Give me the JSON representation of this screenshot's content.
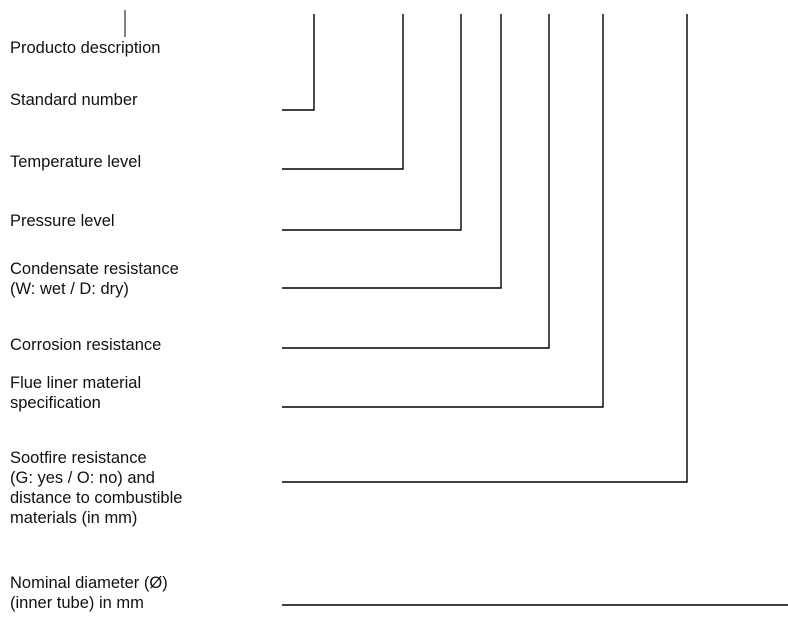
{
  "labels": {
    "product_description": [
      "Producto description"
    ],
    "standard_number": [
      "Standard number"
    ],
    "temperature_level": [
      "Temperature level"
    ],
    "pressure_level": [
      "Pressure level"
    ],
    "condensate_resistance": [
      "Condensate resistance",
      "(W: wet / D: dry)"
    ],
    "corrosion_resistance": [
      "Corrosion resistance"
    ],
    "flue_liner_material": [
      "Flue liner material",
      "specification"
    ],
    "sootfire_resistance": [
      "Sootfire resistance",
      "(G: yes / O: no) and",
      "distance to combustible",
      "materials (in mm)"
    ],
    "nominal_diameter": [
      "Nominal diameter (Ø)",
      "(inner tube) in mm"
    ]
  }
}
